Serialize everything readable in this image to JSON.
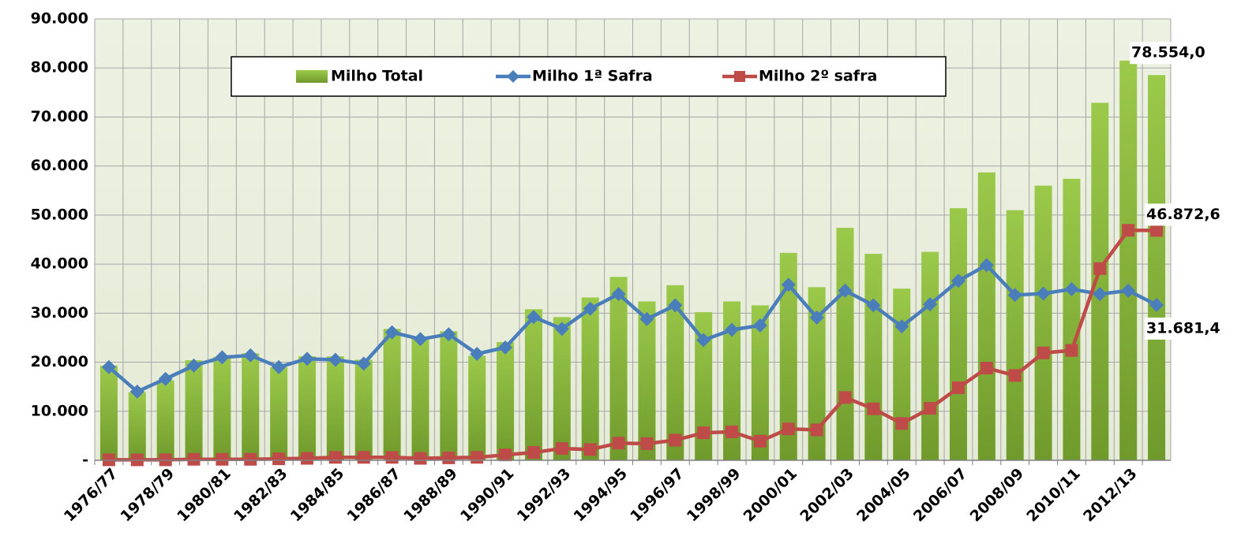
{
  "chart_data": {
    "type": "bar-line",
    "categories": [
      "1976/77",
      null,
      "1978/79",
      null,
      "1980/81",
      null,
      "1982/83",
      null,
      "1984/85",
      null,
      "1986/87",
      null,
      "1988/89",
      null,
      "1990/91",
      null,
      "1992/93",
      null,
      "1994/95",
      null,
      "1996/97",
      null,
      "1998/99",
      null,
      "2000/01",
      null,
      "2002/03",
      null,
      "2004/05",
      null,
      "2006/07",
      null,
      "2008/09",
      null,
      "2010/11",
      null,
      "2012/13",
      null
    ],
    "series": [
      {
        "name": "Milho Total",
        "kind": "bar",
        "color": "#8db33a",
        "values": [
          19300,
          13900,
          16300,
          20400,
          21100,
          21800,
          19000,
          21200,
          21200,
          20500,
          26800,
          25200,
          26300,
          21300,
          24100,
          30800,
          29200,
          33200,
          37400,
          32400,
          35700,
          30200,
          32400,
          31600,
          42300,
          35300,
          47400,
          42100,
          35000,
          42500,
          51400,
          58700,
          51000,
          56000,
          57400,
          72900,
          81500,
          78554
        ],
        "value_labels": [
          null,
          null,
          null,
          null,
          null,
          null,
          null,
          null,
          null,
          null,
          null,
          null,
          null,
          null,
          null,
          null,
          null,
          null,
          null,
          null,
          null,
          null,
          null,
          null,
          null,
          null,
          null,
          null,
          null,
          null,
          null,
          null,
          null,
          null,
          null,
          null,
          null,
          "78.554,0"
        ]
      },
      {
        "name": "Milho 1ª Safra",
        "kind": "line",
        "marker": "diamond",
        "color": "#4a7ebb",
        "values": [
          19000,
          14000,
          16600,
          19300,
          21000,
          21400,
          19000,
          20700,
          20500,
          19700,
          26100,
          24700,
          25700,
          21700,
          23000,
          29200,
          26800,
          30900,
          33900,
          28800,
          31600,
          24500,
          26600,
          27500,
          35800,
          29100,
          34600,
          31600,
          27300,
          31800,
          36600,
          39800,
          33700,
          34000,
          34900,
          33900,
          34600,
          31681.4
        ],
        "value_labels": [
          null,
          null,
          null,
          null,
          null,
          null,
          null,
          null,
          null,
          null,
          null,
          null,
          null,
          null,
          null,
          null,
          null,
          null,
          null,
          null,
          null,
          null,
          null,
          null,
          null,
          null,
          null,
          null,
          null,
          null,
          null,
          null,
          null,
          null,
          null,
          null,
          null,
          "31.681,4"
        ]
      },
      {
        "name": "Milho 2º safra",
        "kind": "line",
        "marker": "square",
        "color": "#be4b48",
        "values": [
          100,
          100,
          100,
          200,
          200,
          200,
          300,
          400,
          600,
          600,
          600,
          400,
          500,
          600,
          1100,
          1600,
          2400,
          2200,
          3500,
          3400,
          4100,
          5600,
          5800,
          3900,
          6400,
          6200,
          12800,
          10500,
          7500,
          10600,
          14800,
          18800,
          17300,
          21900,
          22400,
          39100,
          46900,
          46872.6
        ],
        "value_labels": [
          null,
          null,
          null,
          null,
          null,
          null,
          null,
          null,
          null,
          null,
          null,
          null,
          null,
          null,
          null,
          null,
          null,
          null,
          null,
          null,
          null,
          null,
          null,
          null,
          null,
          null,
          null,
          null,
          null,
          null,
          null,
          null,
          null,
          null,
          null,
          null,
          null,
          "46.872,6"
        ]
      }
    ],
    "ylim": [
      0,
      90000
    ],
    "yticks": [
      {
        "value": 0,
        "label": "-"
      },
      {
        "value": 10000,
        "label": "10.000"
      },
      {
        "value": 20000,
        "label": "20.000"
      },
      {
        "value": 30000,
        "label": "30.000"
      },
      {
        "value": 40000,
        "label": "40.000"
      },
      {
        "value": 50000,
        "label": "50.000"
      },
      {
        "value": 60000,
        "label": "60.000"
      },
      {
        "value": 70000,
        "label": "70.000"
      },
      {
        "value": 80000,
        "label": "80.000"
      },
      {
        "value": 90000,
        "label": "90.000"
      }
    ],
    "grid": true,
    "legend": "top"
  }
}
